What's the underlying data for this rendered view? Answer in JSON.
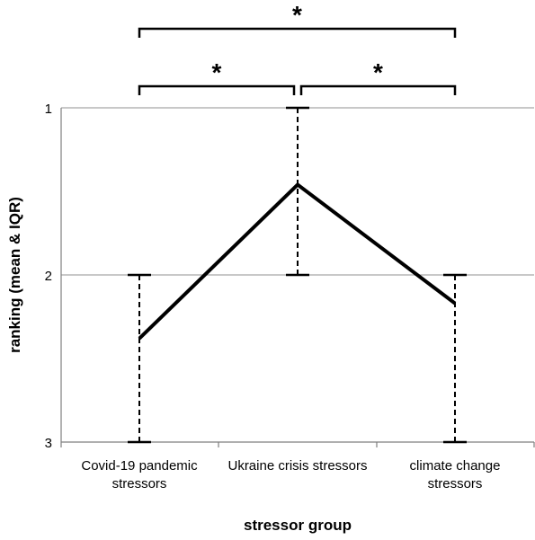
{
  "chart_data": {
    "type": "line",
    "title": "",
    "xlabel": "stressor group",
    "ylabel": "ranking (mean & IQR)",
    "categories": [
      [
        "Covid-19 pandemic",
        "stressors"
      ],
      [
        "Ukraine crisis stressors"
      ],
      [
        "climate change",
        "stressors"
      ]
    ],
    "series": [
      {
        "values": [
          2.38,
          1.46,
          2.17
        ],
        "iqr": [
          [
            2,
            3
          ],
          [
            1,
            2
          ],
          [
            2,
            3
          ]
        ]
      }
    ],
    "yticks": [
      1,
      2,
      3
    ],
    "ylim": [
      1,
      3
    ],
    "y_reversed": true,
    "grid": true,
    "legend": "none",
    "significance": [
      {
        "from": 0,
        "to": 1,
        "label": "*"
      },
      {
        "from": 1,
        "to": 2,
        "label": "*"
      },
      {
        "from": 0,
        "to": 2,
        "label": "*"
      }
    ],
    "colors": {
      "line": "#000000",
      "grid": "#a6a6a6",
      "axis": "#7f7f7f"
    }
  }
}
